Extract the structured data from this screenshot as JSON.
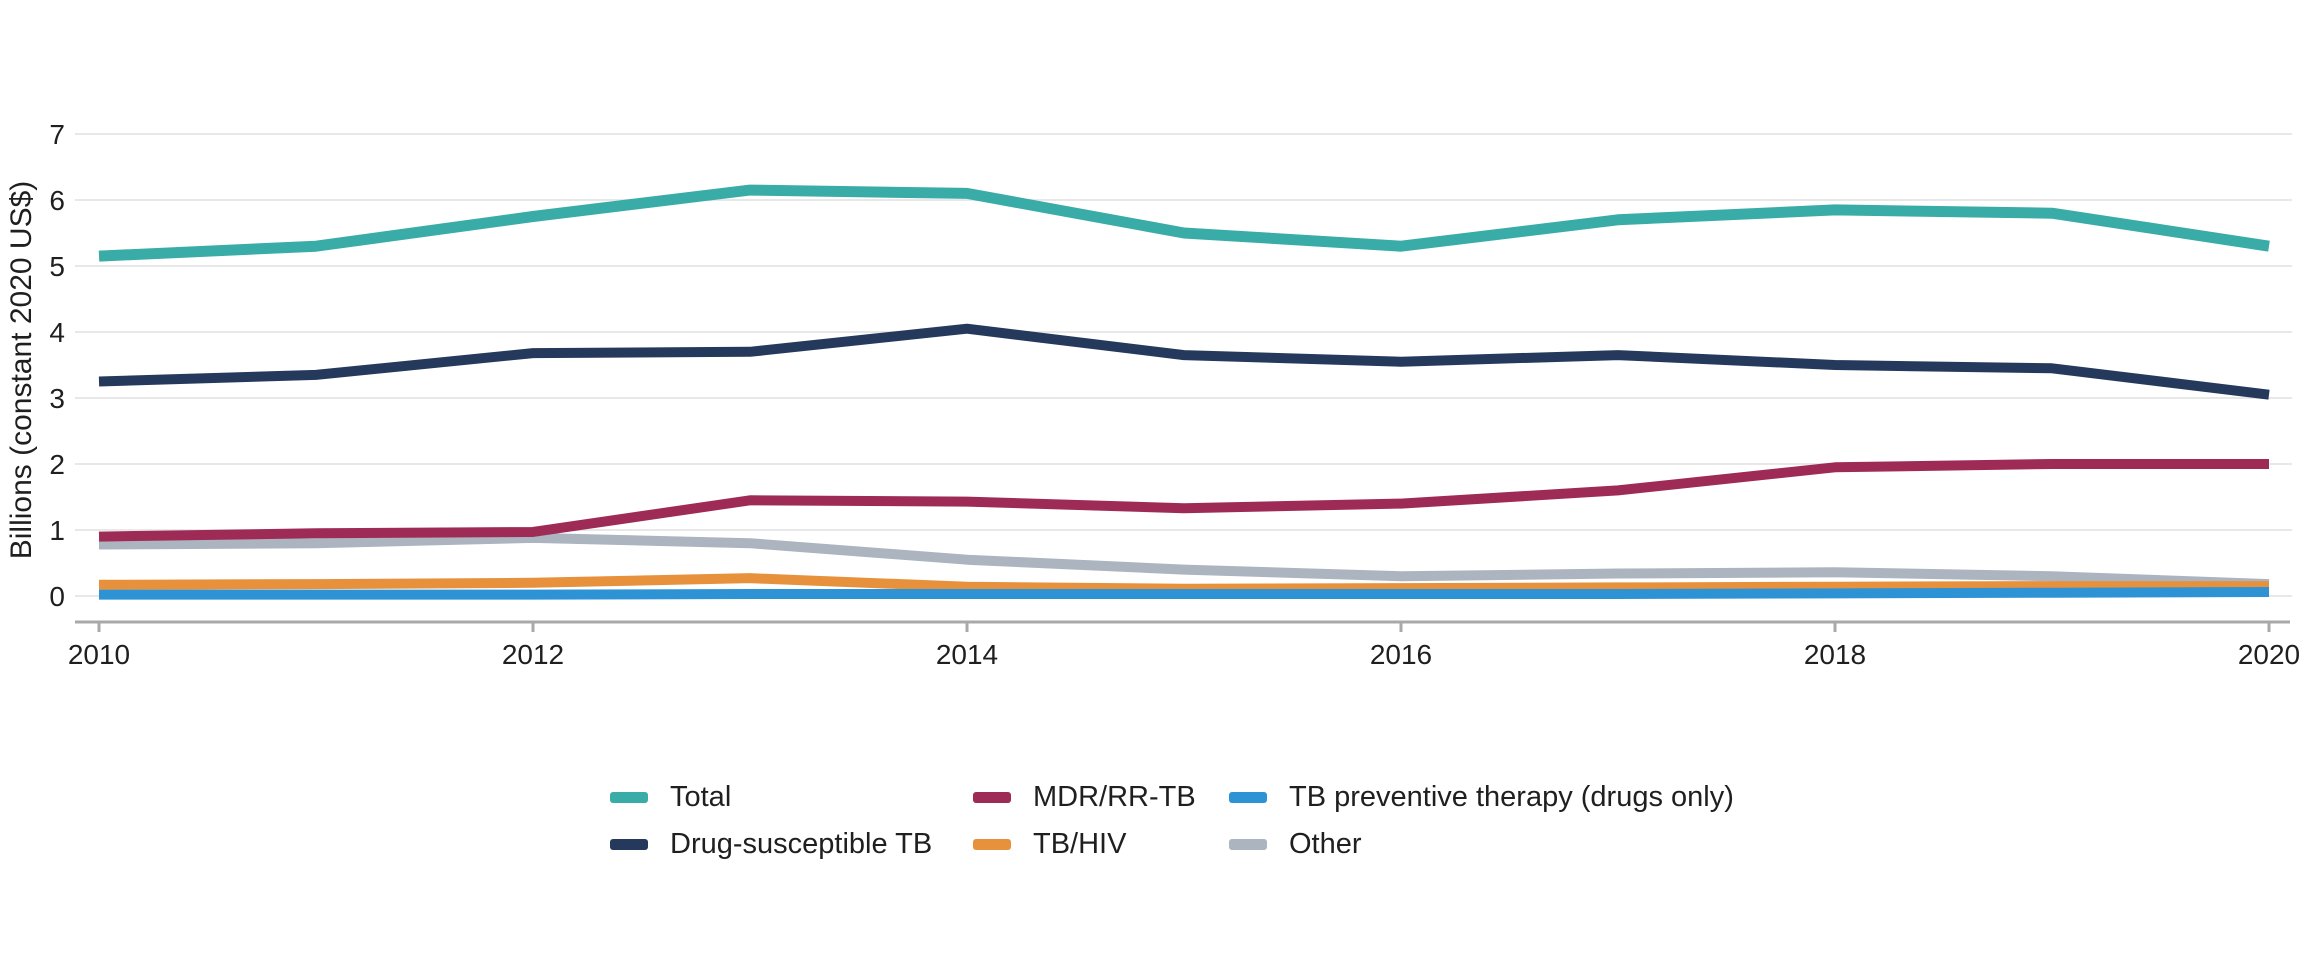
{
  "chart_data": {
    "type": "line",
    "title": "",
    "xlabel": "",
    "ylabel": "Billions (constant 2020 US$)",
    "x": [
      2010,
      2011,
      2012,
      2013,
      2014,
      2015,
      2016,
      2017,
      2018,
      2019,
      2020
    ],
    "xticks": [
      2010,
      2012,
      2014,
      2016,
      2018,
      2020
    ],
    "yticks": [
      0,
      1,
      2,
      3,
      4,
      5,
      6,
      7
    ],
    "ylim": [
      0,
      7
    ],
    "grid": "horizontal",
    "legend_position": "bottom-center",
    "series": [
      {
        "name": "Total",
        "color": "#3AACA8",
        "values": [
          5.15,
          5.3,
          5.75,
          6.15,
          6.1,
          5.5,
          5.3,
          5.7,
          5.85,
          5.8,
          5.3
        ]
      },
      {
        "name": "Drug-susceptible TB",
        "color": "#24395B",
        "values": [
          3.25,
          3.35,
          3.68,
          3.7,
          4.05,
          3.65,
          3.55,
          3.65,
          3.5,
          3.45,
          3.05
        ]
      },
      {
        "name": "MDR/RR-TB",
        "color": "#9E2B56",
        "values": [
          0.9,
          0.95,
          0.97,
          1.45,
          1.43,
          1.33,
          1.4,
          1.6,
          1.95,
          2.0,
          2.0
        ]
      },
      {
        "name": "TB/HIV",
        "color": "#E8913C",
        "values": [
          0.17,
          0.18,
          0.2,
          0.27,
          0.14,
          0.11,
          0.12,
          0.13,
          0.14,
          0.15,
          0.15
        ]
      },
      {
        "name": "TB preventive therapy (drugs only)",
        "color": "#2E93D4",
        "values": [
          0.02,
          0.02,
          0.02,
          0.03,
          0.03,
          0.03,
          0.03,
          0.03,
          0.04,
          0.05,
          0.06
        ]
      },
      {
        "name": "Other",
        "color": "#ABB4BF",
        "values": [
          0.78,
          0.8,
          0.88,
          0.8,
          0.55,
          0.4,
          0.3,
          0.34,
          0.36,
          0.3,
          0.18
        ]
      }
    ],
    "colors": {
      "axis": "#A9A9A9",
      "gridline": "#E8E8E8",
      "text": "#1F1F1F"
    }
  }
}
